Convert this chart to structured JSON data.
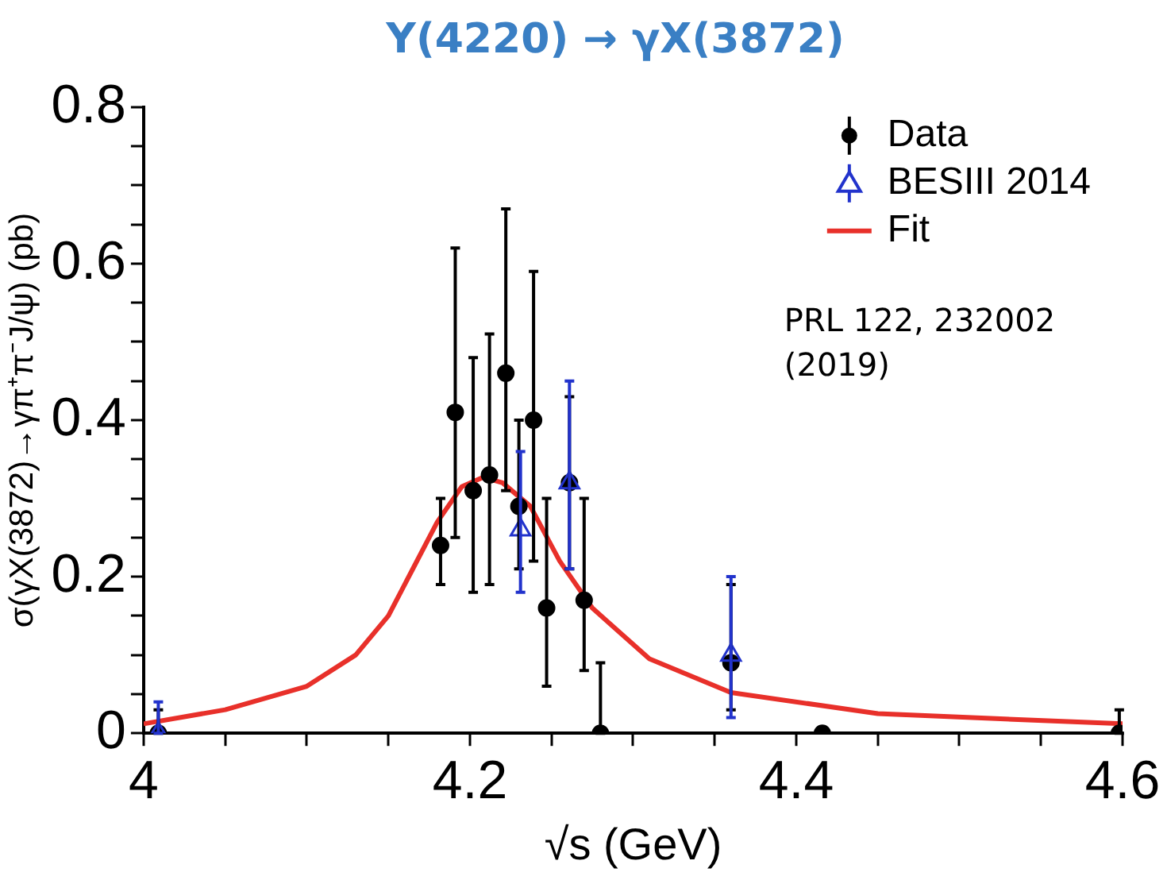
{
  "chart_data": {
    "type": "scatter",
    "title": "Y(4220) → γX(3872)",
    "xlabel": "√s (GeV)",
    "ylabel": "σ(γX(3872)→γπ⁺π⁻J/ψ) (pb)",
    "xlim": [
      4,
      4.6
    ],
    "ylim": [
      0,
      0.8
    ],
    "xticks": [
      4,
      {
        "value": 4.05,
        "label": null
      },
      {
        "value": 4.1,
        "label": null
      },
      {
        "value": 4.15,
        "label": null
      },
      {
        "value": 4.2,
        "label": "4.2"
      },
      {
        "value": 4.25,
        "label": null
      },
      {
        "value": 4.3,
        "label": null
      },
      {
        "value": 4.35,
        "label": null
      },
      {
        "value": 4.4,
        "label": "4.4"
      },
      {
        "value": 4.45,
        "label": null
      },
      {
        "value": 4.5,
        "label": null
      },
      {
        "value": 4.55,
        "label": null
      },
      {
        "value": 4.6,
        "label": "4.6"
      }
    ],
    "yticks": [
      0,
      {
        "value": 0.05,
        "label": null
      },
      {
        "value": 0.1,
        "label": null
      },
      {
        "value": 0.15,
        "label": null
      },
      {
        "value": 0.2,
        "label": "0.2"
      },
      {
        "value": 0.25,
        "label": null
      },
      {
        "value": 0.3,
        "label": null
      },
      {
        "value": 0.35,
        "label": null
      },
      {
        "value": 0.4,
        "label": "0.4"
      },
      {
        "value": 0.45,
        "label": null
      },
      {
        "value": 0.5,
        "label": null
      },
      {
        "value": 0.55,
        "label": null
      },
      {
        "value": 0.6,
        "label": "0.6"
      },
      {
        "value": 0.65,
        "label": null
      },
      {
        "value": 0.7,
        "label": null
      },
      {
        "value": 0.75,
        "label": null
      },
      {
        "value": 0.8,
        "label": "0.8"
      }
    ],
    "grid": false,
    "legend": "top right",
    "annotations": [
      "PRL 122, 232002 (2019)"
    ],
    "series": [
      {
        "name": "Data",
        "marker": "circle",
        "color": "#000000",
        "x": [
          4.009,
          4.182,
          4.191,
          4.202,
          4.212,
          4.222,
          4.23,
          4.239,
          4.247,
          4.261,
          4.27,
          4.28,
          4.36,
          4.416,
          4.598
        ],
        "values": [
          0,
          0.24,
          0.41,
          0.31,
          0.33,
          0.46,
          0.29,
          0.4,
          0.16,
          0.32,
          0.17,
          0,
          0.09,
          0,
          0
        ],
        "errors": [
          [
            0,
            0.03
          ],
          [
            0.19,
            0.3
          ],
          [
            0.25,
            0.62
          ],
          [
            0.18,
            0.48
          ],
          [
            0.19,
            0.51
          ],
          [
            0.31,
            0.67
          ],
          [
            0.21,
            0.4
          ],
          [
            0.22,
            0.59
          ],
          [
            0.06,
            0.3
          ],
          [
            0.21,
            0.43
          ],
          [
            0.08,
            0.3
          ],
          [
            0,
            0.09
          ],
          [
            0.03,
            0.19
          ],
          null,
          [
            0,
            0.03
          ]
        ]
      },
      {
        "name": "BESIII 2014",
        "marker": "triangle",
        "color": "#2233cc",
        "x": [
          4.009,
          4.231,
          4.261,
          4.36
        ],
        "values": [
          0,
          0.26,
          0.32,
          0.1
        ],
        "errors": [
          [
            0,
            0.04
          ],
          [
            0.18,
            0.36
          ],
          [
            0.21,
            0.45
          ],
          [
            0.02,
            0.2
          ]
        ]
      },
      {
        "name": "Fit",
        "type": "line",
        "marker": "none",
        "line_style": "solid",
        "color": "#e8302a",
        "x": [
          4,
          4.05,
          4.1,
          4.13,
          4.15,
          4.165,
          4.18,
          4.195,
          4.208,
          4.22,
          4.237,
          4.255,
          4.275,
          4.31,
          4.36,
          4.45,
          4.6
        ],
        "values": [
          0.012,
          0.03,
          0.06,
          0.1,
          0.15,
          0.21,
          0.27,
          0.315,
          0.327,
          0.32,
          0.29,
          0.22,
          0.16,
          0.095,
          0.052,
          0.025,
          0.012
        ]
      }
    ]
  }
}
